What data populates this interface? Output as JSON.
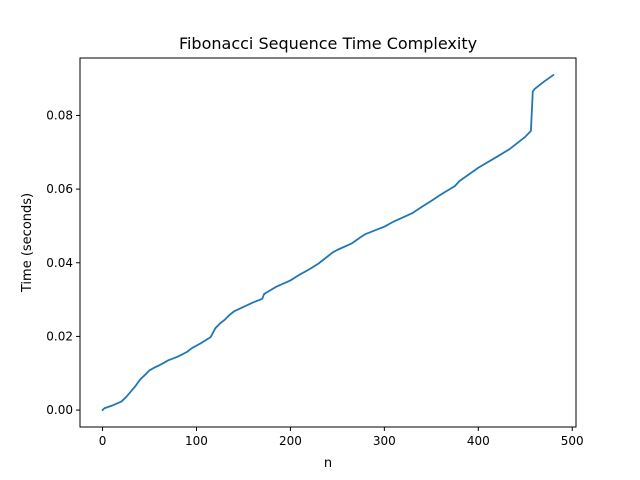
{
  "chart_data": {
    "type": "line",
    "title": "Fibonacci Sequence Time Complexity",
    "xlabel": "n",
    "ylabel": "Time (seconds)",
    "xlim": [
      -24,
      504
    ],
    "ylim": [
      -0.0046,
      0.0956
    ],
    "x_ticks": [
      0,
      100,
      200,
      300,
      400,
      500
    ],
    "y_ticks": [
      0.0,
      0.02,
      0.04,
      0.06,
      0.08
    ],
    "x_tick_labels": [
      "0",
      "100",
      "200",
      "300",
      "400",
      "500"
    ],
    "y_tick_labels": [
      "0.00",
      "0.02",
      "0.04",
      "0.06",
      "0.08"
    ],
    "grid": false,
    "series_color": "#1f77b4",
    "series": [
      {
        "x": [
          0,
          2,
          10,
          20,
          25,
          30,
          35,
          40,
          45,
          50,
          55,
          60,
          65,
          70,
          80,
          90,
          95,
          100,
          105,
          110,
          115,
          118,
          120,
          125,
          130,
          135,
          140,
          150,
          160,
          170,
          172,
          175,
          185,
          200,
          210,
          220,
          230,
          240,
          245,
          250,
          265,
          275,
          280,
          300,
          310,
          330,
          340,
          350,
          360,
          375,
          380,
          400,
          420,
          433,
          440,
          450,
          456,
          458,
          460,
          470,
          480
        ],
        "y": [
          0.0,
          0.0005,
          0.0012,
          0.0023,
          0.0035,
          0.005,
          0.0065,
          0.0083,
          0.0095,
          0.0108,
          0.0115,
          0.0121,
          0.0128,
          0.0135,
          0.0145,
          0.0158,
          0.0168,
          0.0175,
          0.0182,
          0.019,
          0.0198,
          0.0212,
          0.0222,
          0.0235,
          0.0245,
          0.0258,
          0.0268,
          0.028,
          0.0292,
          0.0302,
          0.0315,
          0.032,
          0.0335,
          0.0352,
          0.0368,
          0.0382,
          0.0398,
          0.0418,
          0.0428,
          0.0435,
          0.0452,
          0.047,
          0.0478,
          0.0498,
          0.0512,
          0.0535,
          0.0552,
          0.0568,
          0.0585,
          0.0608,
          0.0622,
          0.0658,
          0.0688,
          0.0708,
          0.0722,
          0.0742,
          0.0758,
          0.0865,
          0.0872,
          0.0892,
          0.091
        ]
      }
    ]
  }
}
